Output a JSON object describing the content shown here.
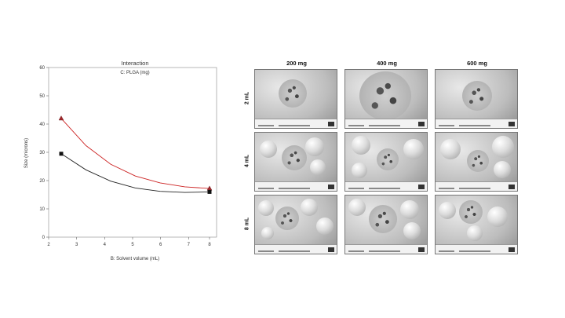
{
  "chart_data": {
    "type": "line",
    "title": "Interaction",
    "subtitle": "C: PLGA (mg)",
    "xlabel": "B: Solvent volume (mL)",
    "ylabel": "Size (microns)",
    "xlim": [
      2,
      8
    ],
    "ylim": [
      0,
      60
    ],
    "xticks": [
      2,
      3,
      4,
      5,
      6,
      7,
      8
    ],
    "yticks": [
      0,
      10,
      20,
      30,
      40,
      50,
      60
    ],
    "series": [
      {
        "marker": "triangle",
        "color": "#cc2222",
        "x": [
          2,
          3,
          4,
          5,
          6,
          7,
          8
        ],
        "values": [
          42,
          32.4,
          25.8,
          21.6,
          19.2,
          17.8,
          17.2
        ],
        "points": [
          {
            "x": 2,
            "y": 42
          },
          {
            "x": 8,
            "y": 17.2
          }
        ]
      },
      {
        "marker": "square",
        "color": "#222222",
        "x": [
          2,
          3,
          4,
          5,
          6,
          7,
          8
        ],
        "values": [
          29.5,
          23.8,
          19.8,
          17.4,
          16.2,
          15.8,
          16
        ],
        "points": [
          {
            "x": 2,
            "y": 29.5
          },
          {
            "x": 8,
            "y": 16
          }
        ]
      }
    ]
  },
  "sem": {
    "columns": [
      "200 mg",
      "400 mg",
      "600 mg"
    ],
    "rows": [
      "2 mL",
      "4 mL",
      "8 mL"
    ]
  }
}
